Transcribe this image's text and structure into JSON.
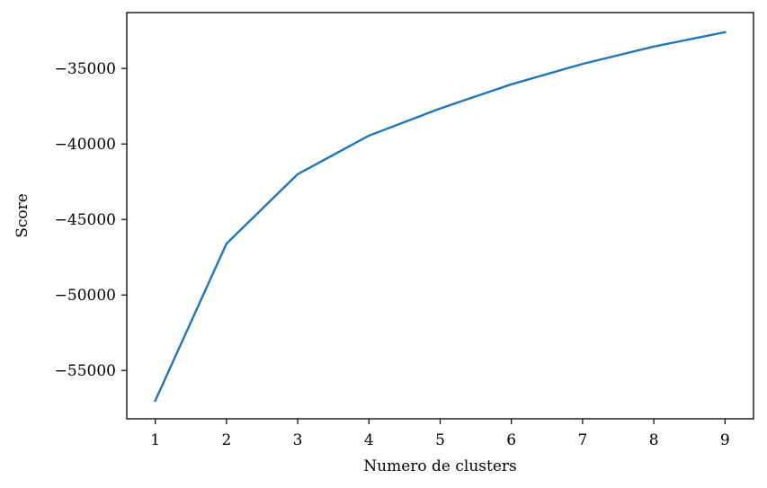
{
  "chart_data": {
    "type": "line",
    "title": "",
    "xlabel": "Numero de clusters",
    "ylabel": "Score",
    "x": [
      1,
      2,
      3,
      4,
      5,
      6,
      7,
      8,
      9
    ],
    "series": [
      {
        "values": [
          -57000,
          -46600,
          -42000,
          -39450,
          -37650,
          -36050,
          -34700,
          -33550,
          -32600
        ],
        "color": "#1f77b4"
      }
    ],
    "xlim": [
      0.6,
      9.4
    ],
    "ylim": [
      -58200,
      -31300
    ],
    "xticks": [
      1,
      2,
      3,
      4,
      5,
      6,
      7,
      8,
      9
    ],
    "xtick_labels": [
      "1",
      "2",
      "3",
      "4",
      "5",
      "6",
      "7",
      "8",
      "9"
    ],
    "yticks": [
      -55000,
      -50000,
      -45000,
      -40000,
      -35000
    ],
    "ytick_labels": [
      "−55000",
      "−50000",
      "−45000",
      "−40000",
      "−35000"
    ],
    "grid": false,
    "legend": "none"
  }
}
